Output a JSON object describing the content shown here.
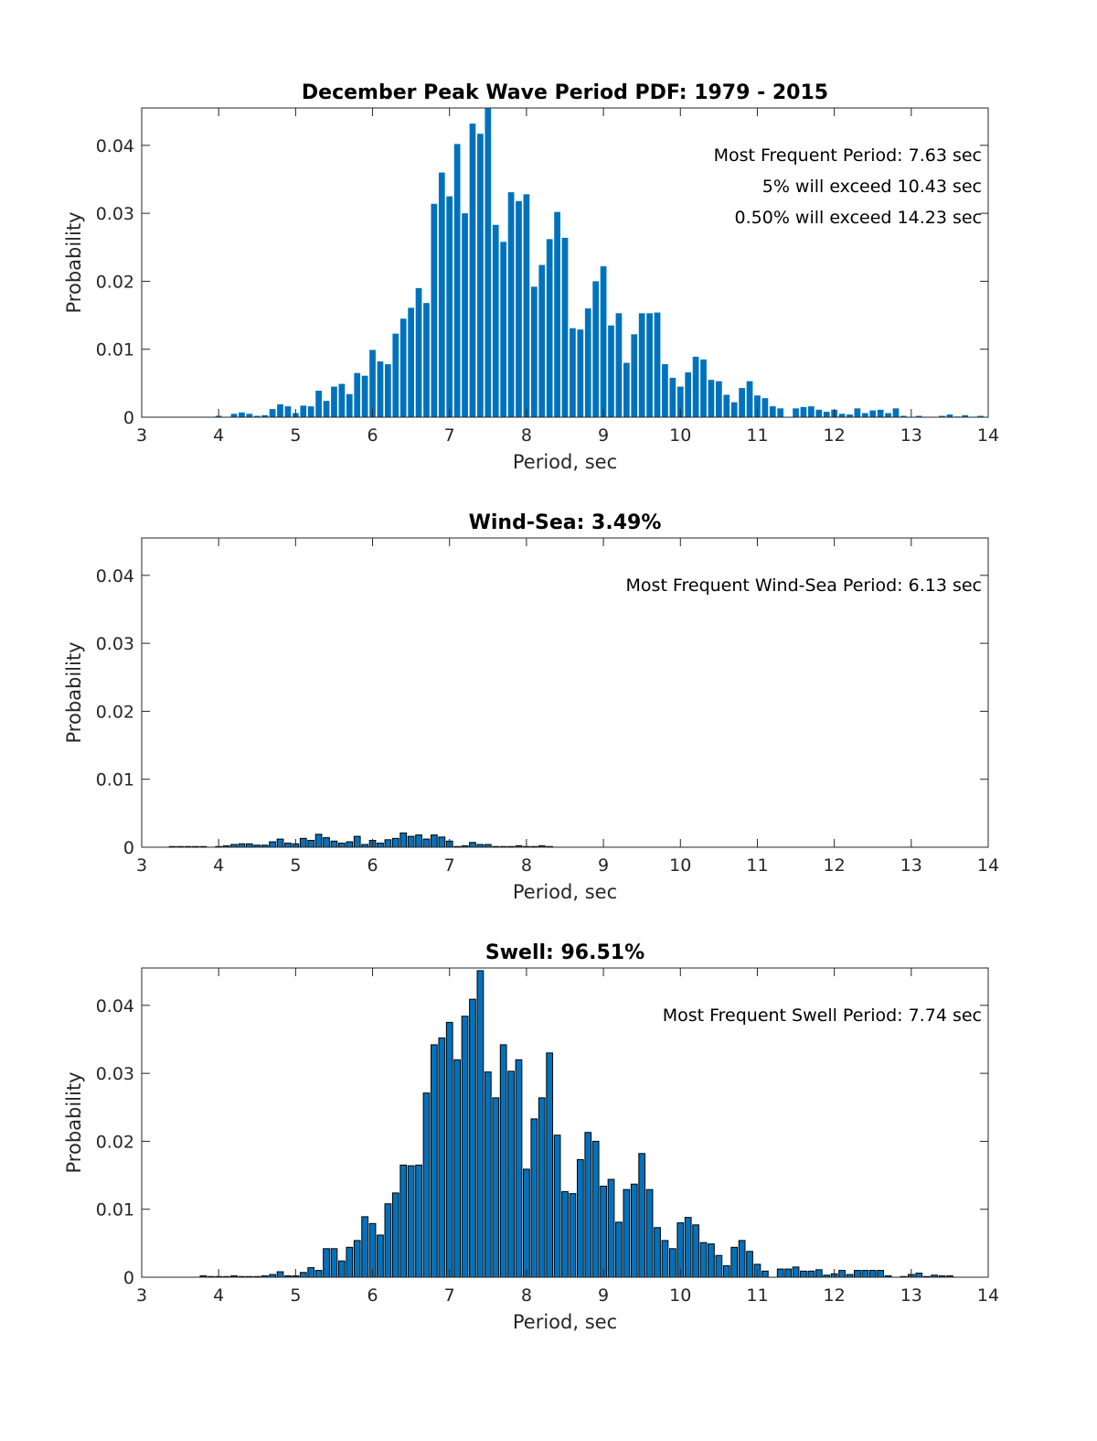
{
  "chart_data": [
    {
      "type": "bar",
      "title": "December Peak Wave Period PDF: 1979 - 2015",
      "xlabel": "Period, sec",
      "ylabel": "Probability",
      "xlim": [
        3,
        14
      ],
      "ylim": [
        0,
        0.0455
      ],
      "xticks": [
        "3",
        "4",
        "5",
        "6",
        "7",
        "8",
        "9",
        "10",
        "11",
        "12",
        "13",
        "14"
      ],
      "yticks": [
        "0",
        "0.01",
        "0.02",
        "0.03",
        "0.04"
      ],
      "bar_color": "#0072BD",
      "bar_edge": "none",
      "annotations": [
        "Most Frequent Period: 7.63 sec",
        "5% will exceed 10.43 sec",
        "0.50% will exceed 14.23 sec"
      ],
      "x_start": 3.0,
      "x_step": 0.1,
      "values": [
        0,
        0,
        0,
        0,
        0,
        0,
        0,
        0,
        0,
        0,
        0.0002,
        0,
        0.0005,
        0.0007,
        0.0005,
        0.0002,
        0.0003,
        0.0012,
        0.0019,
        0.0016,
        0.0006,
        0.0017,
        0.0016,
        0.0039,
        0.0024,
        0.0045,
        0.0049,
        0.0034,
        0.0065,
        0.0061,
        0.0099,
        0.0082,
        0.0078,
        0.0123,
        0.0145,
        0.0161,
        0.019,
        0.0168,
        0.0314,
        0.036,
        0.0325,
        0.0402,
        0.03,
        0.0432,
        0.0417,
        0.0455,
        0.0283,
        0.0258,
        0.0331,
        0.0318,
        0.0328,
        0.0192,
        0.0224,
        0.0262,
        0.0302,
        0.0264,
        0.0131,
        0.0129,
        0.016,
        0.02,
        0.0222,
        0.0135,
        0.0153,
        0.008,
        0.0122,
        0.0153,
        0.0153,
        0.0154,
        0.0078,
        0.0058,
        0.0045,
        0.0066,
        0.0089,
        0.0085,
        0.0055,
        0.0053,
        0.0033,
        0.0022,
        0.0043,
        0.0053,
        0.0032,
        0.0028,
        0.0016,
        0.0013,
        0,
        0.0013,
        0.0015,
        0.0016,
        0.0011,
        0.0008,
        0.0011,
        0.0005,
        0.0004,
        0.0013,
        0.0006,
        0.001,
        0.0011,
        0.0006,
        0.0013,
        0.0002,
        0,
        0.0002,
        0,
        0,
        0.0002,
        0.0004,
        0.0001,
        0.0003,
        0,
        0.0002
      ]
    },
    {
      "type": "bar",
      "title": "Wind-Sea: 3.49%",
      "xlabel": "Period, sec",
      "ylabel": "Probability",
      "xlim": [
        3,
        14
      ],
      "ylim": [
        0,
        0.0455
      ],
      "xticks": [
        "3",
        "4",
        "5",
        "6",
        "7",
        "8",
        "9",
        "10",
        "11",
        "12",
        "13",
        "14"
      ],
      "yticks": [
        "0",
        "0.01",
        "0.02",
        "0.03",
        "0.04"
      ],
      "bar_color": "#0072BD",
      "bar_edge": "#000000",
      "annotations": [
        "Most Frequent Wind-Sea Period: 6.13 sec"
      ],
      "x_start": 3.0,
      "x_step": 0.1,
      "values": [
        0,
        0,
        0,
        0,
        0.0001,
        0.0001,
        0.0001,
        0.0001,
        0.0001,
        0,
        0.0001,
        0.0002,
        0.0004,
        0.0005,
        0.0005,
        0.0003,
        0.0003,
        0.0008,
        0.0012,
        0.0006,
        0.0005,
        0.0013,
        0.001,
        0.0019,
        0.0014,
        0.0009,
        0.0006,
        0.0008,
        0.0016,
        0.0004,
        0.001,
        0.0006,
        0.0011,
        0.0013,
        0.0021,
        0.0016,
        0.0018,
        0.0012,
        0.0018,
        0.0015,
        0.0009,
        0.0001,
        0.0002,
        0.0007,
        0.0004,
        0.0004,
        0.0001,
        0.0001,
        0.0001,
        0.0002,
        0.0001,
        0.0001,
        0.0002,
        0.0001,
        0,
        0,
        0,
        0,
        0,
        0,
        0,
        0,
        0,
        0,
        0,
        0,
        0,
        0,
        0,
        0,
        0,
        0,
        0,
        0,
        0,
        0,
        0,
        0,
        0,
        0,
        0,
        0,
        0,
        0,
        0,
        0,
        0,
        0,
        0,
        0,
        0,
        0,
        0,
        0,
        0,
        0,
        0,
        0,
        0,
        0,
        0,
        0,
        0,
        0,
        0,
        0,
        0,
        0,
        0,
        0
      ]
    },
    {
      "type": "bar",
      "title": "Swell: 96.51%",
      "xlabel": "Period, sec",
      "ylabel": "Probability",
      "xlim": [
        3,
        14
      ],
      "ylim": [
        0,
        0.0455
      ],
      "xticks": [
        "3",
        "4",
        "5",
        "6",
        "7",
        "8",
        "9",
        "10",
        "11",
        "12",
        "13",
        "14"
      ],
      "yticks": [
        "0",
        "0.01",
        "0.02",
        "0.03",
        "0.04"
      ],
      "bar_color": "#0072BD",
      "bar_edge": "#000000",
      "annotations": [
        "Most Frequent Swell Period: 7.74 sec"
      ],
      "x_start": 3.0,
      "x_step": 0.1,
      "values": [
        0,
        0,
        0,
        0,
        0,
        0,
        0,
        0,
        0.0002,
        0.0001,
        0.0001,
        0.0001,
        0.0002,
        0.0001,
        0.0001,
        0.0001,
        0.0002,
        0.0004,
        0.0008,
        0.0002,
        0.0002,
        0.0007,
        0.0014,
        0.001,
        0.0042,
        0.0042,
        0.0024,
        0.0044,
        0.0054,
        0.0089,
        0.0079,
        0.0062,
        0.0108,
        0.0124,
        0.0165,
        0.0164,
        0.0165,
        0.0271,
        0.0342,
        0.0352,
        0.0375,
        0.032,
        0.0384,
        0.0409,
        0.0451,
        0.0302,
        0.0264,
        0.0342,
        0.0303,
        0.032,
        0.0159,
        0.0233,
        0.0264,
        0.033,
        0.0209,
        0.0126,
        0.0123,
        0.0173,
        0.0213,
        0.02,
        0.0134,
        0.0144,
        0.0081,
        0.0129,
        0.0137,
        0.0182,
        0.0129,
        0.0073,
        0.0054,
        0.0042,
        0.008,
        0.0088,
        0.0077,
        0.0051,
        0.0049,
        0.0032,
        0.0017,
        0.0044,
        0.0054,
        0.0038,
        0.0019,
        0.0009,
        0,
        0.0012,
        0.0012,
        0.0015,
        0.0009,
        0.0009,
        0.0011,
        0.0003,
        0.0005,
        0.001,
        0.0004,
        0.001,
        0.001,
        0.001,
        0.001,
        0.0002,
        0,
        0.0001,
        0.0004,
        0.0006,
        0.0001,
        0.0003,
        0.0002,
        0.0002,
        0,
        0,
        0,
        0
      ]
    }
  ]
}
